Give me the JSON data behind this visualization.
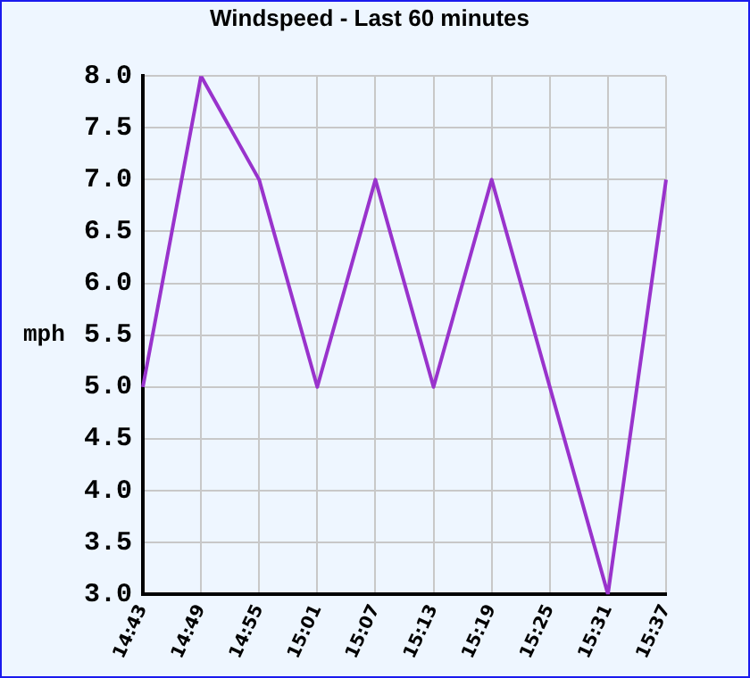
{
  "chart_data": {
    "type": "line",
    "title": "Windspeed - Last 60 minutes",
    "ylabel": "mph",
    "categories": [
      "14:43",
      "14:49",
      "14:55",
      "15:01",
      "15:07",
      "15:13",
      "15:19",
      "15:25",
      "15:31",
      "15:37"
    ],
    "series": [
      {
        "color": "#9933cc",
        "values": [
          5,
          8,
          7,
          5,
          7,
          5,
          7,
          5,
          3,
          7
        ]
      }
    ],
    "ylim": [
      3,
      8
    ],
    "yticks": [
      {
        "value": 3,
        "label": "3.0"
      },
      {
        "value": 3.5,
        "label": "3.5"
      },
      {
        "value": 4,
        "label": "4.0"
      },
      {
        "value": 4.5,
        "label": "4.5"
      },
      {
        "value": 5,
        "label": "5.0"
      },
      {
        "value": 5.5,
        "label": "5.5"
      },
      {
        "value": 6,
        "label": "6.0"
      },
      {
        "value": 6.5,
        "label": "6.5"
      },
      {
        "value": 7,
        "label": "7.0"
      },
      {
        "value": 7.5,
        "label": "7.5"
      },
      {
        "value": 8,
        "label": "8.0"
      }
    ],
    "grid": true,
    "legend": false,
    "marker": "none",
    "line_style": "solid"
  }
}
